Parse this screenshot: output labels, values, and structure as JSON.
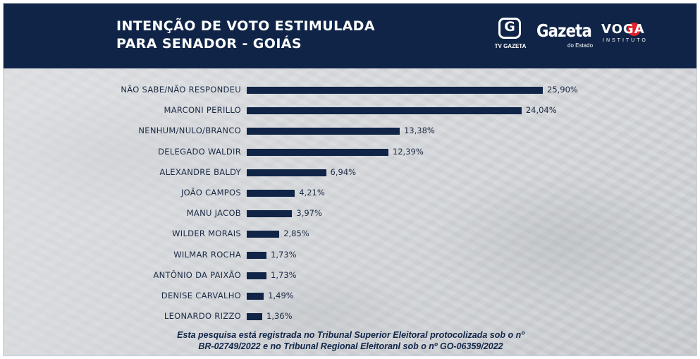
{
  "header": {
    "title_line1": "INTENÇÃO DE VOTO ESTIMULADA",
    "title_line2": "PARA SENADOR - GOIÁS",
    "logo_tv_letter": "G",
    "logo_tv_text": "TV GAZETA",
    "logo_gazeta": "Gazeta",
    "logo_gazeta_sub": "do Estado",
    "logo_voga": "VOGA",
    "logo_voga_sub": "INSTITUTO"
  },
  "chart_data": {
    "type": "bar",
    "orientation": "horizontal",
    "title": "INTENÇÃO DE VOTO ESTIMULADA PARA SENADOR - GOIÁS",
    "categories": [
      "NÃO SABE/NÃO RESPONDEU",
      "MARCONI PERILLO",
      "NENHUM/NULO/BRANCO",
      "DELEGADO WALDIR",
      "ALEXANDRE BALDY",
      "JOÃO CAMPOS",
      "MANU JACOB",
      "WILDER MORAIS",
      "WILMAR ROCHA",
      "ANTÔNIO DA PAIXÃO",
      "DENISE CARVALHO",
      "LEONARDO RIZZO"
    ],
    "values": [
      25.9,
      24.04,
      13.38,
      12.39,
      6.94,
      4.21,
      3.97,
      2.85,
      1.73,
      1.73,
      1.49,
      1.36
    ],
    "value_labels": [
      "25,90%",
      "24,04%",
      "13,38%",
      "12,39%",
      "6,94%",
      "4,21%",
      "3,97%",
      "2,85%",
      "1,73%",
      "1,73%",
      "1,49%",
      "1,36%"
    ],
    "xlim": [
      0,
      25.9
    ],
    "grid": false,
    "bar_color": "#0f2447"
  },
  "footer": {
    "line1": "Esta pesquisa está registrada no Tribunal Superior Eleitoral protocolizada sob o nº",
    "line2": "BR-02749/2022 e no Tribunal Regional Eleitoranl sob o nº GO-06359/2022"
  },
  "colors": {
    "header_bg": "#0f2447",
    "text": "#1b2a44",
    "accent": "#e0202a"
  }
}
